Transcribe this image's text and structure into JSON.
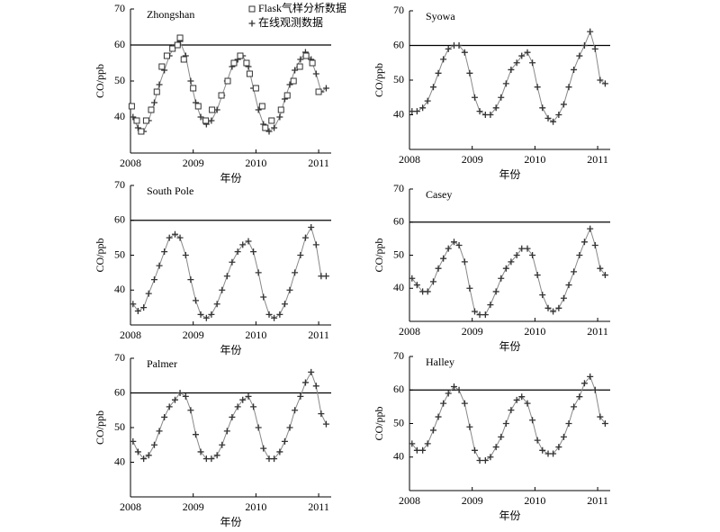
{
  "chart_data": [
    {
      "type": "line",
      "title": "Zhongshan",
      "xlabel": "年份",
      "ylabel": "CO/ppb",
      "xlim": [
        2008,
        2011.2
      ],
      "ylim": [
        30,
        70
      ],
      "xticks": [
        2008,
        2009,
        2010,
        2011
      ],
      "yticks": [
        40,
        50,
        60,
        70
      ],
      "hline": 60,
      "legend": true,
      "x": [
        2008.04,
        2008.12,
        2008.21,
        2008.29,
        2008.38,
        2008.46,
        2008.54,
        2008.62,
        2008.71,
        2008.79,
        2008.88,
        2008.96,
        2009.04,
        2009.12,
        2009.21,
        2009.29,
        2009.38,
        2009.46,
        2009.54,
        2009.62,
        2009.71,
        2009.79,
        2009.88,
        2009.96,
        2010.04,
        2010.12,
        2010.21,
        2010.29,
        2010.38,
        2010.46,
        2010.54,
        2010.62,
        2010.71,
        2010.79,
        2010.88,
        2010.96,
        2011.04,
        2011.12
      ],
      "series": [
        {
          "name": "在线观测数据",
          "color": "#333333",
          "marker": "plus",
          "line": true,
          "values": [
            40,
            37,
            36,
            39,
            44,
            49,
            53,
            57,
            60,
            61,
            57,
            50,
            44,
            40,
            38,
            39,
            42,
            46,
            50,
            54,
            56,
            57,
            54,
            48,
            42,
            38,
            36,
            37,
            40,
            45,
            49,
            53,
            56,
            58,
            56,
            52,
            47,
            48
          ]
        },
        {
          "name": "Flask气样分析数据",
          "color": "#333333",
          "marker": "square",
          "line": false,
          "x": [
            2008.02,
            2008.1,
            2008.17,
            2008.25,
            2008.33,
            2008.42,
            2008.5,
            2008.58,
            2008.67,
            2008.75,
            2008.79,
            2008.85,
            2009.0,
            2009.08,
            2009.2,
            2009.3,
            2009.45,
            2009.55,
            2009.65,
            2009.75,
            2009.85,
            2009.9,
            2010.0,
            2010.1,
            2010.15,
            2010.25,
            2010.4,
            2010.5,
            2010.6,
            2010.7,
            2010.8,
            2010.9,
            2011.0
          ],
          "values": [
            43,
            39,
            36,
            39,
            42,
            47,
            54,
            57,
            59,
            60,
            62,
            56,
            48,
            43,
            39,
            42,
            46,
            50,
            55,
            57,
            55,
            52,
            48,
            43,
            37,
            39,
            42,
            46,
            50,
            54,
            57,
            55,
            47
          ]
        }
      ]
    },
    {
      "type": "line",
      "title": "Syowa",
      "xlabel": "年份",
      "ylabel": "CO/ppb",
      "xlim": [
        2008,
        2011.2
      ],
      "ylim": [
        30,
        70
      ],
      "xticks": [
        2008,
        2009,
        2010,
        2011
      ],
      "yticks": [
        40,
        50,
        60,
        70
      ],
      "hline": 60,
      "legend": false,
      "x": [
        2008.04,
        2008.12,
        2008.21,
        2008.29,
        2008.38,
        2008.46,
        2008.54,
        2008.62,
        2008.71,
        2008.79,
        2008.88,
        2008.96,
        2009.04,
        2009.12,
        2009.21,
        2009.29,
        2009.38,
        2009.46,
        2009.54,
        2009.62,
        2009.71,
        2009.79,
        2009.88,
        2009.96,
        2010.04,
        2010.12,
        2010.21,
        2010.29,
        2010.38,
        2010.46,
        2010.54,
        2010.62,
        2010.71,
        2010.79,
        2010.88,
        2010.96,
        2011.04,
        2011.12
      ],
      "series": [
        {
          "color": "#333333",
          "marker": "plus",
          "line": true,
          "values": [
            41,
            41,
            42,
            44,
            48,
            52,
            56,
            59,
            60,
            60,
            58,
            52,
            45,
            41,
            40,
            40,
            42,
            45,
            49,
            53,
            55,
            57,
            58,
            55,
            48,
            42,
            39,
            38,
            40,
            43,
            48,
            53,
            57,
            60,
            64,
            59,
            50,
            49
          ]
        }
      ]
    },
    {
      "type": "line",
      "title": "South Pole",
      "xlabel": "年份",
      "ylabel": "CO/ppb",
      "xlim": [
        2008,
        2011.2
      ],
      "ylim": [
        30,
        70
      ],
      "xticks": [
        2008,
        2009,
        2010,
        2011
      ],
      "yticks": [
        40,
        50,
        60,
        70
      ],
      "hline": 60,
      "legend": false,
      "x": [
        2008.04,
        2008.12,
        2008.21,
        2008.29,
        2008.38,
        2008.46,
        2008.54,
        2008.62,
        2008.71,
        2008.79,
        2008.88,
        2008.96,
        2009.04,
        2009.12,
        2009.21,
        2009.29,
        2009.38,
        2009.46,
        2009.54,
        2009.62,
        2009.71,
        2009.79,
        2009.88,
        2009.96,
        2010.04,
        2010.12,
        2010.21,
        2010.29,
        2010.38,
        2010.46,
        2010.54,
        2010.62,
        2010.71,
        2010.79,
        2010.88,
        2010.96,
        2011.04,
        2011.12
      ],
      "series": [
        {
          "color": "#333333",
          "marker": "plus",
          "line": true,
          "values": [
            36,
            34,
            35,
            39,
            43,
            47,
            51,
            55,
            56,
            55,
            50,
            43,
            37,
            33,
            32,
            33,
            36,
            40,
            44,
            48,
            51,
            53,
            54,
            51,
            45,
            38,
            33,
            32,
            33,
            36,
            40,
            45,
            50,
            55,
            58,
            53,
            44,
            44
          ]
        }
      ]
    },
    {
      "type": "line",
      "title": "Casey",
      "xlabel": "年份",
      "ylabel": "CO/ppb",
      "xlim": [
        2008,
        2011.2
      ],
      "ylim": [
        30,
        70
      ],
      "xticks": [
        2008,
        2009,
        2010,
        2011
      ],
      "yticks": [
        40,
        50,
        60,
        70
      ],
      "hline": 60,
      "legend": false,
      "x": [
        2008.04,
        2008.12,
        2008.21,
        2008.29,
        2008.38,
        2008.46,
        2008.54,
        2008.62,
        2008.71,
        2008.79,
        2008.88,
        2008.96,
        2009.04,
        2009.12,
        2009.21,
        2009.29,
        2009.38,
        2009.46,
        2009.54,
        2009.62,
        2009.71,
        2009.79,
        2009.88,
        2009.96,
        2010.04,
        2010.12,
        2010.21,
        2010.29,
        2010.38,
        2010.46,
        2010.54,
        2010.62,
        2010.71,
        2010.79,
        2010.88,
        2010.96,
        2011.04,
        2011.12
      ],
      "series": [
        {
          "color": "#333333",
          "marker": "plus",
          "line": true,
          "values": [
            43,
            41,
            39,
            39,
            42,
            46,
            49,
            52,
            54,
            53,
            48,
            40,
            33,
            32,
            32,
            35,
            39,
            43,
            46,
            48,
            50,
            52,
            52,
            50,
            44,
            38,
            34,
            33,
            34,
            37,
            41,
            45,
            50,
            54,
            58,
            53,
            46,
            44
          ]
        }
      ]
    },
    {
      "type": "line",
      "title": "Palmer",
      "xlabel": "年份",
      "ylabel": "CO/ppb",
      "xlim": [
        2008,
        2011.2
      ],
      "ylim": [
        30,
        70
      ],
      "xticks": [
        2008,
        2009,
        2010,
        2011
      ],
      "yticks": [
        40,
        50,
        60,
        70
      ],
      "hline": 60,
      "legend": false,
      "x": [
        2008.04,
        2008.12,
        2008.21,
        2008.29,
        2008.38,
        2008.46,
        2008.54,
        2008.62,
        2008.71,
        2008.79,
        2008.88,
        2008.96,
        2009.04,
        2009.12,
        2009.21,
        2009.29,
        2009.38,
        2009.46,
        2009.54,
        2009.62,
        2009.71,
        2009.79,
        2009.88,
        2009.96,
        2010.04,
        2010.12,
        2010.21,
        2010.29,
        2010.38,
        2010.46,
        2010.54,
        2010.62,
        2010.71,
        2010.79,
        2010.88,
        2010.96,
        2011.04,
        2011.12
      ],
      "series": [
        {
          "color": "#333333",
          "marker": "plus",
          "line": true,
          "values": [
            46,
            43,
            41,
            42,
            45,
            49,
            53,
            56,
            58,
            60,
            59,
            55,
            48,
            43,
            41,
            41,
            42,
            45,
            49,
            53,
            56,
            58,
            59,
            56,
            50,
            44,
            41,
            41,
            43,
            46,
            50,
            55,
            59,
            63,
            66,
            62,
            54,
            51
          ]
        }
      ]
    },
    {
      "type": "line",
      "title": "Halley",
      "xlabel": "年份",
      "ylabel": "CO/ppb",
      "xlim": [
        2008,
        2011.2
      ],
      "ylim": [
        30,
        70
      ],
      "xticks": [
        2008,
        2009,
        2010,
        2011
      ],
      "yticks": [
        40,
        50,
        60,
        70
      ],
      "hline": 60,
      "legend": false,
      "x": [
        2008.04,
        2008.12,
        2008.21,
        2008.29,
        2008.38,
        2008.46,
        2008.54,
        2008.62,
        2008.71,
        2008.79,
        2008.88,
        2008.96,
        2009.04,
        2009.12,
        2009.21,
        2009.29,
        2009.38,
        2009.46,
        2009.54,
        2009.62,
        2009.71,
        2009.79,
        2009.88,
        2009.96,
        2010.04,
        2010.12,
        2010.21,
        2010.29,
        2010.38,
        2010.46,
        2010.54,
        2010.62,
        2010.71,
        2010.79,
        2010.88,
        2010.96,
        2011.04,
        2011.12
      ],
      "series": [
        {
          "color": "#333333",
          "marker": "plus",
          "line": true,
          "values": [
            44,
            42,
            42,
            44,
            48,
            52,
            56,
            59,
            61,
            60,
            56,
            49,
            42,
            39,
            39,
            40,
            43,
            46,
            50,
            54,
            57,
            58,
            56,
            51,
            45,
            42,
            41,
            41,
            43,
            46,
            50,
            55,
            58,
            62,
            64,
            60,
            52,
            50
          ]
        }
      ]
    }
  ]
}
